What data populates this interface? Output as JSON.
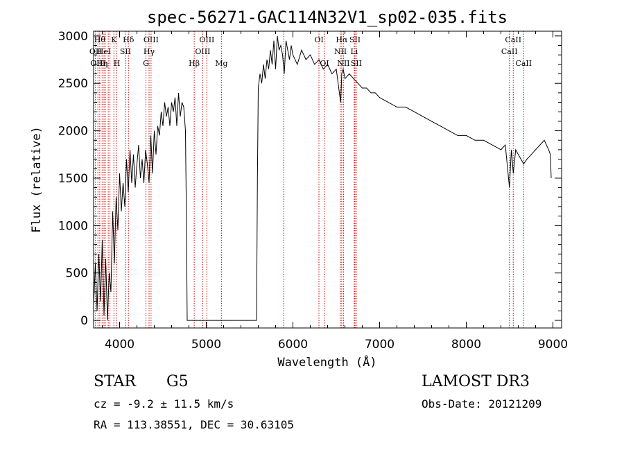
{
  "chart_data": {
    "type": "line",
    "title": "spec-56271-GAC114N32V1_sp02-035.fits",
    "xlabel": "Wavelength (Å)",
    "ylabel": "Flux (relative)",
    "xlim": [
      3700,
      9100
    ],
    "ylim": [
      -80,
      3050
    ],
    "xticks": [
      4000,
      5000,
      6000,
      7000,
      8000,
      9000
    ],
    "xtick_labels": [
      "4000",
      "5000",
      "6000",
      "7000",
      "8000",
      "9000"
    ],
    "yticks": [
      0,
      500,
      1000,
      1500,
      2000,
      2500,
      3000
    ],
    "ytick_labels": [
      "0",
      "500",
      "1000",
      "1500",
      "2000",
      "2500",
      "3000"
    ],
    "series": [
      {
        "name": "spectrum",
        "x": [
          3700,
          3720,
          3740,
          3760,
          3780,
          3800,
          3820,
          3840,
          3860,
          3880,
          3900,
          3920,
          3940,
          3960,
          3980,
          4000,
          4020,
          4040,
          4060,
          4080,
          4100,
          4120,
          4140,
          4160,
          4180,
          4200,
          4220,
          4240,
          4260,
          4280,
          4300,
          4320,
          4340,
          4360,
          4380,
          4400,
          4420,
          4440,
          4460,
          4480,
          4500,
          4520,
          4540,
          4560,
          4580,
          4600,
          4620,
          4640,
          4660,
          4680,
          4700,
          4720,
          4740,
          4760,
          4770,
          4780,
          5500,
          5580,
          5590,
          5600,
          5620,
          5640,
          5660,
          5680,
          5700,
          5720,
          5740,
          5760,
          5780,
          5800,
          5820,
          5840,
          5860,
          5880,
          5900,
          5920,
          5940,
          5960,
          5980,
          6000,
          6050,
          6100,
          6150,
          6200,
          6250,
          6300,
          6350,
          6400,
          6450,
          6500,
          6550,
          6563,
          6580,
          6600,
          6650,
          6700,
          6750,
          6800,
          6850,
          6900,
          6950,
          7000,
          7100,
          7200,
          7300,
          7400,
          7500,
          7600,
          7700,
          7800,
          7900,
          8000,
          8100,
          8200,
          8300,
          8400,
          8450,
          8498,
          8520,
          8542,
          8570,
          8600,
          8662,
          8700,
          8750,
          8800,
          8850,
          8900,
          8950,
          8970,
          8980
        ],
        "y": [
          150,
          600,
          100,
          700,
          200,
          850,
          50,
          650,
          0,
          500,
          300,
          1150,
          600,
          1300,
          950,
          1550,
          1150,
          1450,
          1200,
          1700,
          1350,
          1800,
          1450,
          1750,
          1400,
          1650,
          1850,
          1500,
          1700,
          1450,
          1800,
          1650,
          1450,
          1950,
          1550,
          2000,
          1750,
          2050,
          1950,
          2200,
          2050,
          2300,
          2150,
          2250,
          2050,
          2300,
          2200,
          2350,
          2050,
          2400,
          2150,
          2300,
          2250,
          2000,
          1100,
          0,
          0,
          0,
          1500,
          2450,
          2600,
          2500,
          2700,
          2550,
          2750,
          2650,
          2850,
          2700,
          2950,
          2650,
          3000,
          2850,
          2900,
          2800,
          2600,
          2950,
          2850,
          2750,
          2900,
          2800,
          2700,
          2850,
          2750,
          2800,
          2700,
          2750,
          2650,
          2700,
          2600,
          2650,
          2300,
          2600,
          2650,
          2550,
          2600,
          2550,
          2500,
          2450,
          2450,
          2400,
          2400,
          2350,
          2300,
          2250,
          2250,
          2200,
          2150,
          2100,
          2050,
          2000,
          1950,
          1950,
          1900,
          1900,
          1850,
          1800,
          1850,
          1400,
          1800,
          1550,
          1800,
          1750,
          1650,
          1700,
          1750,
          1800,
          1850,
          1900,
          1800,
          1750,
          1500
        ]
      }
    ],
    "lines": [
      {
        "wl": 3722,
        "label": "OII",
        "row": 1
      },
      {
        "wl": 3750,
        "label": "OIII",
        "row": 2
      },
      {
        "wl": 3771,
        "label": "Hθ",
        "row": 0
      },
      {
        "wl": 3798,
        "label": "Hη",
        "row": 2
      },
      {
        "wl": 3820,
        "label": "HeI",
        "row": 1
      },
      {
        "wl": 3835,
        "label": "η",
        "row": 2
      },
      {
        "wl": 3869,
        "label": "",
        "row": 1
      },
      {
        "wl": 3889,
        "label": "",
        "row": 2
      },
      {
        "wl": 3934,
        "label": "K",
        "row": 0
      },
      {
        "wl": 3968,
        "label": "H",
        "row": 2
      },
      {
        "wl": 4068,
        "label": "SII",
        "row": 1
      },
      {
        "wl": 4102,
        "label": "Hδ",
        "row": 0
      },
      {
        "wl": 4304,
        "label": "G",
        "row": 2
      },
      {
        "wl": 4340,
        "label": "Hγ",
        "row": 1
      },
      {
        "wl": 4363,
        "label": "OIII",
        "row": 0
      },
      {
        "wl": 4861,
        "label": "Hβ",
        "row": 2
      },
      {
        "wl": 4959,
        "label": "OIII",
        "row": 1
      },
      {
        "wl": 5007,
        "label": "OIII",
        "row": 0
      },
      {
        "wl": 5175,
        "label": "Mg",
        "row": 2
      },
      {
        "wl": 5894,
        "label": "",
        "row": 0
      },
      {
        "wl": 6300,
        "label": "OI",
        "row": 0
      },
      {
        "wl": 6364,
        "label": "OI",
        "row": 2
      },
      {
        "wl": 6548,
        "label": "NII",
        "row": 1
      },
      {
        "wl": 6563,
        "label": "Hα",
        "row": 0
      },
      {
        "wl": 6583,
        "label": "NII",
        "row": 2
      },
      {
        "wl": 6707,
        "label": "Li",
        "row": 1
      },
      {
        "wl": 6716,
        "label": "SII",
        "row": 0
      },
      {
        "wl": 6731,
        "label": "SII",
        "row": 2
      },
      {
        "wl": 8498,
        "label": "CaII",
        "row": 1
      },
      {
        "wl": 8542,
        "label": "CaII",
        "row": 0
      },
      {
        "wl": 8662,
        "label": "CaII",
        "row": 2
      }
    ]
  },
  "info": {
    "object_class": "STAR",
    "subclass": "G5",
    "survey": "LAMOST DR3",
    "cz": "cz = -9.2 ± 11.5 km/s",
    "obs_date": "Obs-Date: 20121209",
    "radec": "RA = 113.38551, DEC =  30.63105"
  }
}
